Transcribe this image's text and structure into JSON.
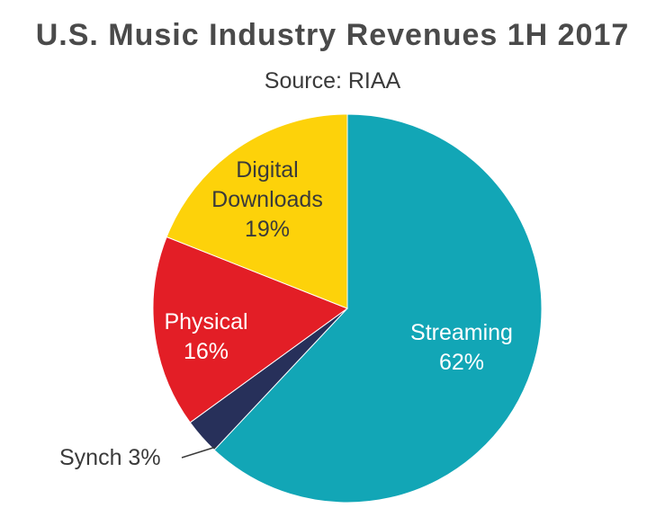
{
  "title": "U.S. Music Industry Revenues 1H 2017",
  "subtitle": "Source: RIAA",
  "chart_data": {
    "type": "pie",
    "title": "U.S. Music Industry Revenues 1H 2017",
    "subtitle": "Source: RIAA",
    "start_angle_deg": 0,
    "direction": "clockwise",
    "slices": [
      {
        "label": "Streaming",
        "value": 62,
        "value_label": "62%",
        "color": "#12a6b6",
        "label_color": "#ffffff"
      },
      {
        "label": "Synch",
        "value": 3,
        "value_label": "3%",
        "color": "#27305a",
        "label_color": "#3a3a3a",
        "label_outside": true,
        "outside_text": "Synch 3%"
      },
      {
        "label": "Physical",
        "value": 16,
        "value_label": "16%",
        "color": "#e31e26",
        "label_color": "#ffffff"
      },
      {
        "label": "Digital Downloads",
        "value": 19,
        "value_label": "19%",
        "color": "#fdd20a",
        "label_color": "#3a3a3a",
        "label_lines": [
          "Digital",
          "Downloads",
          "19%"
        ]
      }
    ]
  }
}
